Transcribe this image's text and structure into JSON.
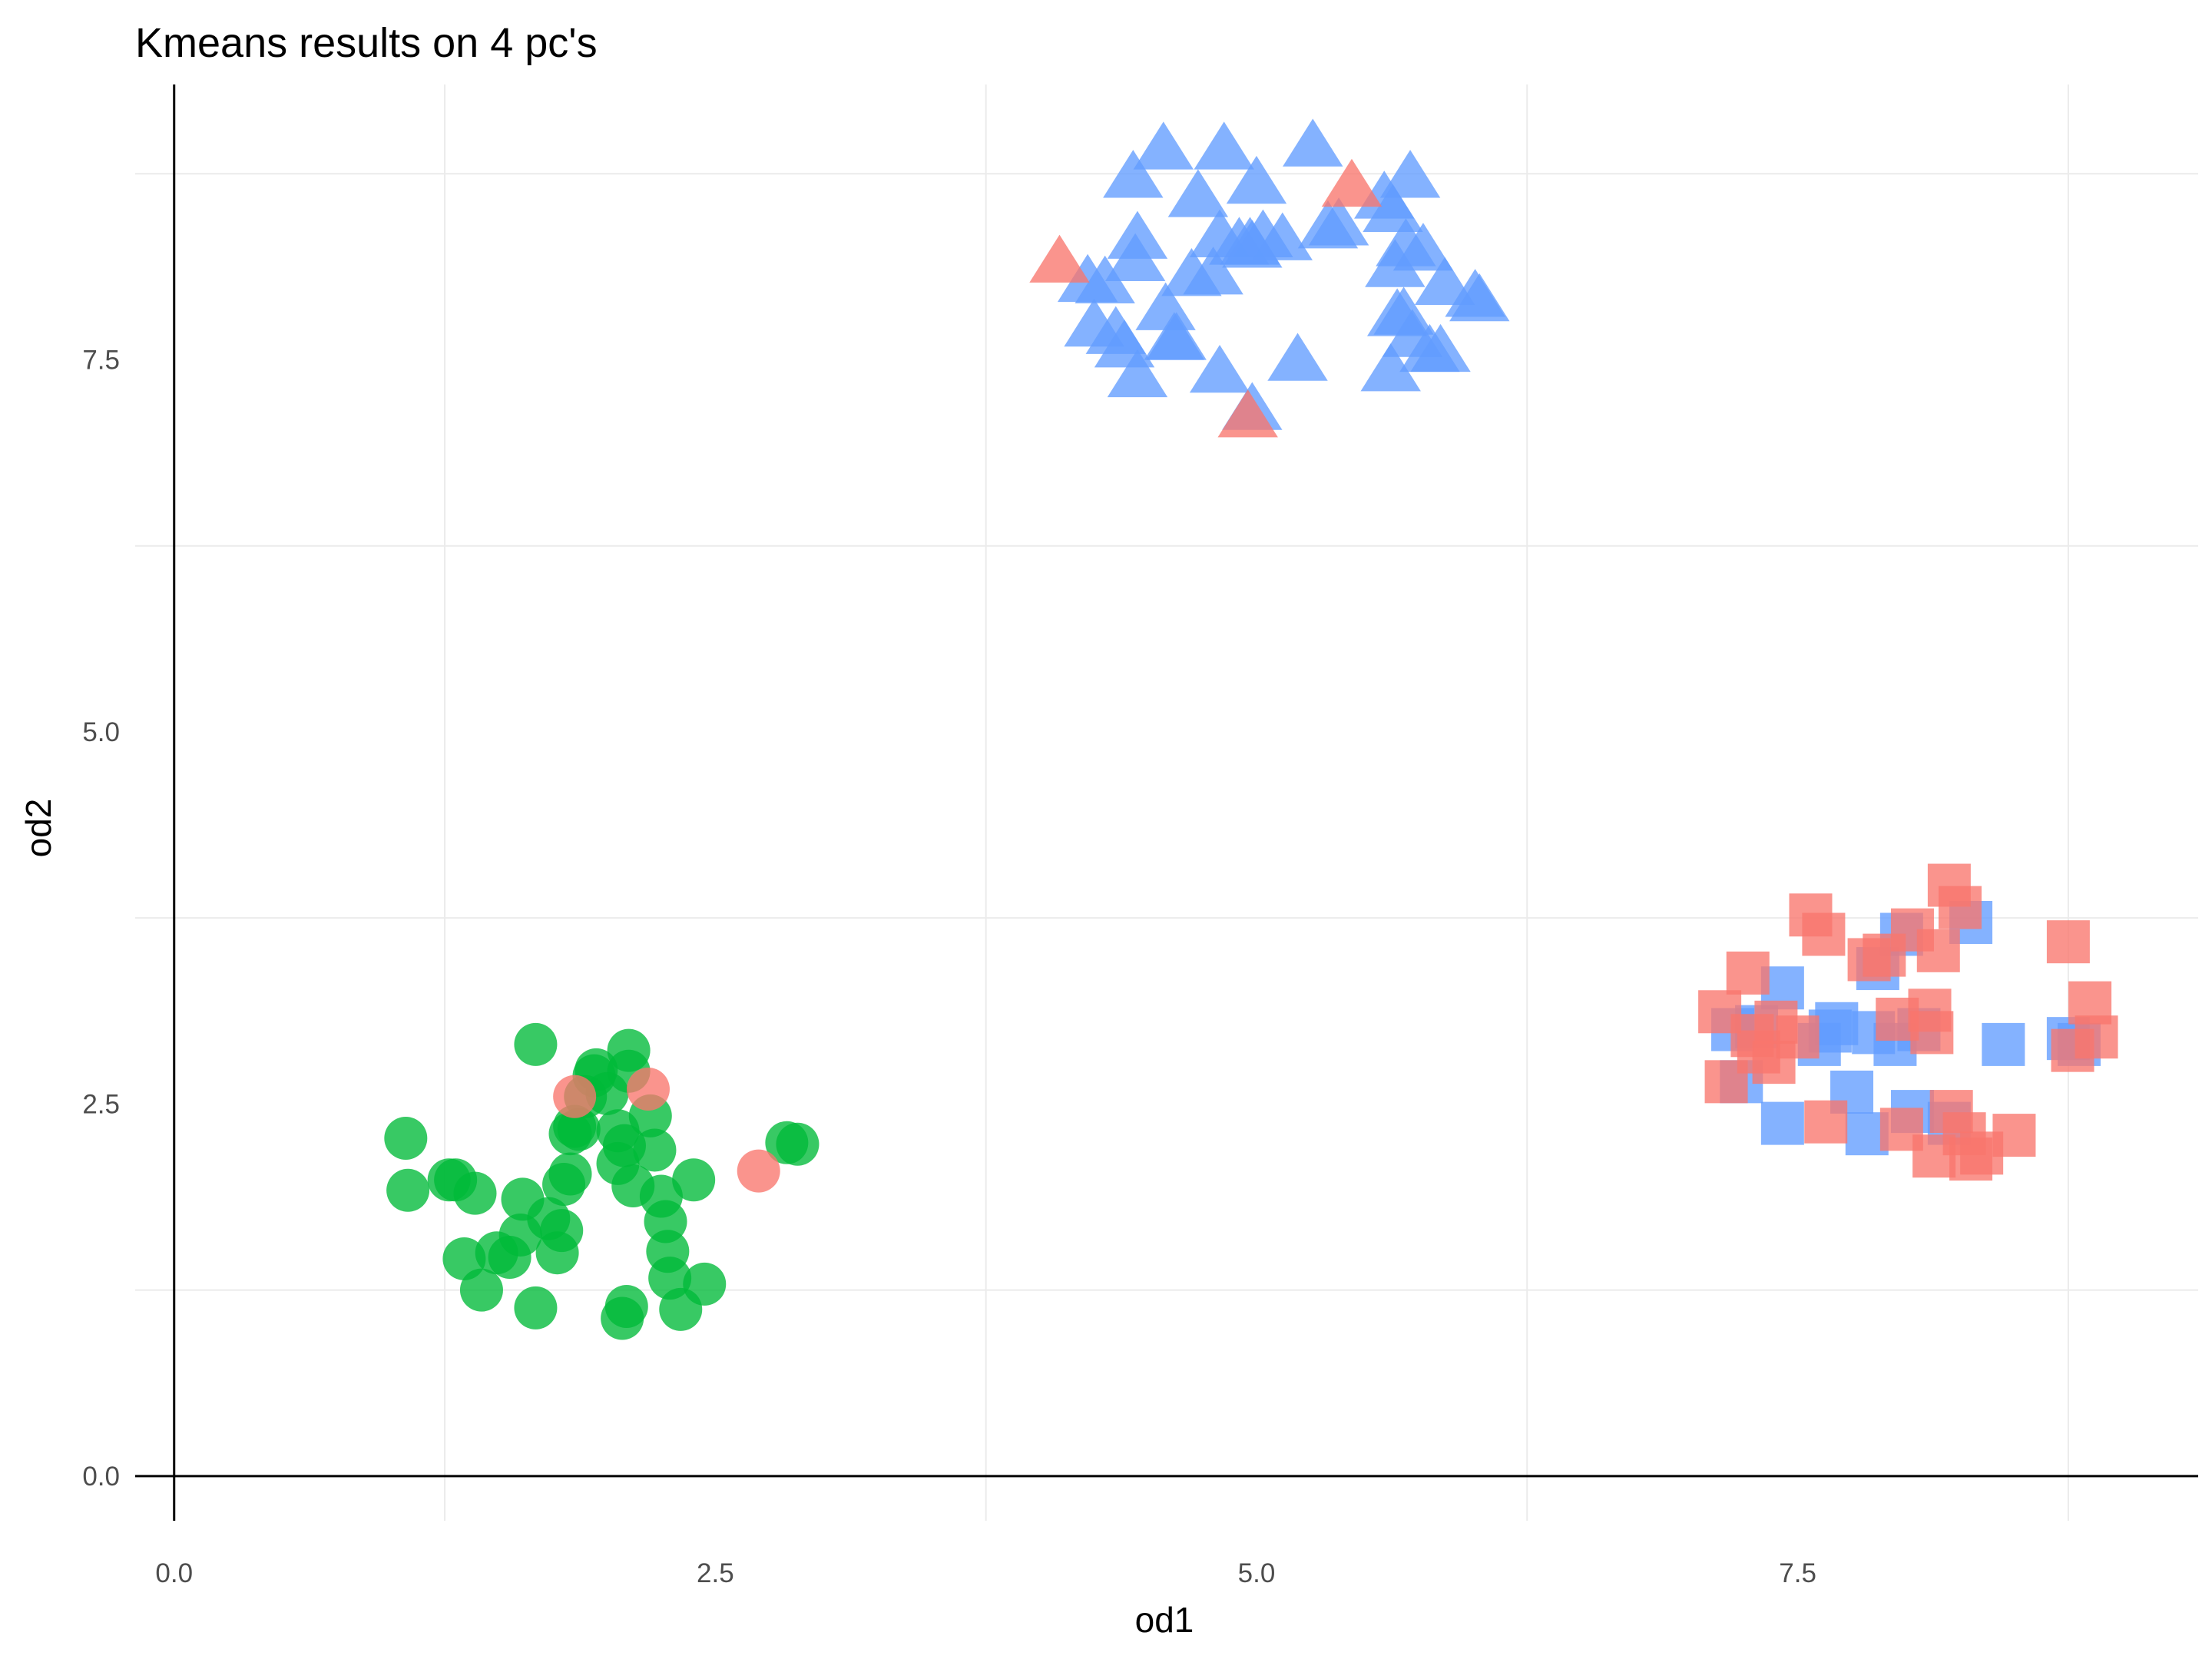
{
  "chart_data": {
    "type": "scatter",
    "title": "Kmeans results on 4 pc's",
    "xlabel": "od1",
    "ylabel": "od2",
    "xlim": [
      -0.18,
      9.35
    ],
    "ylim": [
      -0.3,
      9.35
    ],
    "x_ticks": [
      0.0,
      2.5,
      5.0,
      7.5
    ],
    "x_tick_labels": [
      "0.0",
      "2.5",
      "5.0",
      "7.5"
    ],
    "y_ticks": [
      0.0,
      2.5,
      5.0,
      7.5
    ],
    "y_tick_labels": [
      "0.0",
      "2.5",
      "5.0",
      "7.5"
    ],
    "grid": true,
    "legend": "none",
    "colors": {
      "red": "#F8766D",
      "green": "#00BA38",
      "blue": "#619CFF"
    },
    "series": [
      {
        "shape": "circle",
        "color": "green",
        "points": [
          [
            1.07,
            2.27
          ],
          [
            1.08,
            1.92
          ],
          [
            1.27,
            1.99
          ],
          [
            1.3,
            1.99
          ],
          [
            1.39,
            1.9
          ],
          [
            1.34,
            1.46
          ],
          [
            1.42,
            1.25
          ],
          [
            1.49,
            1.5
          ],
          [
            1.55,
            1.47
          ],
          [
            1.6,
            1.62
          ],
          [
            1.61,
            1.86
          ],
          [
            1.67,
            2.9
          ],
          [
            1.67,
            1.13
          ],
          [
            1.73,
            1.73
          ],
          [
            1.77,
            1.5
          ],
          [
            1.79,
            1.65
          ],
          [
            1.8,
            1.96
          ],
          [
            1.83,
            2.03
          ],
          [
            1.83,
            2.3
          ],
          [
            1.85,
            2.35
          ],
          [
            1.87,
            2.33
          ],
          [
            1.9,
            2.55
          ],
          [
            1.94,
            2.69
          ],
          [
            1.95,
            2.73
          ],
          [
            2.0,
            2.57
          ],
          [
            2.05,
            2.32
          ],
          [
            2.05,
            2.1
          ],
          [
            2.07,
            1.06
          ],
          [
            2.09,
            1.14
          ],
          [
            2.08,
            2.22
          ],
          [
            2.1,
            2.72
          ],
          [
            2.1,
            2.86
          ],
          [
            2.12,
            1.95
          ],
          [
            2.2,
            2.42
          ],
          [
            2.22,
            2.19
          ],
          [
            2.25,
            1.88
          ],
          [
            2.27,
            1.71
          ],
          [
            2.28,
            1.51
          ],
          [
            2.29,
            1.33
          ],
          [
            2.34,
            1.12
          ],
          [
            2.4,
            1.99
          ],
          [
            2.45,
            1.29
          ],
          [
            2.83,
            2.24
          ],
          [
            2.88,
            2.23
          ]
        ]
      },
      {
        "shape": "circle",
        "color": "red",
        "points": [
          [
            1.85,
            2.55
          ],
          [
            2.19,
            2.6
          ],
          [
            2.7,
            2.05
          ]
        ]
      },
      {
        "shape": "triangle",
        "color": "blue",
        "points": [
          [
            4.22,
            8.03
          ],
          [
            4.3,
            8.02
          ],
          [
            4.25,
            7.73
          ],
          [
            4.35,
            7.68
          ],
          [
            4.39,
            7.59
          ],
          [
            4.44,
            8.17
          ],
          [
            4.45,
            8.32
          ],
          [
            4.45,
            7.39
          ],
          [
            4.43,
            8.73
          ],
          [
            4.57,
            8.92
          ],
          [
            4.58,
            7.84
          ],
          [
            4.62,
            7.64
          ],
          [
            4.63,
            7.64
          ],
          [
            4.7,
            8.07
          ],
          [
            4.73,
            8.6
          ],
          [
            4.8,
            8.08
          ],
          [
            4.83,
            8.33
          ],
          [
            4.83,
            7.42
          ],
          [
            4.85,
            8.92
          ],
          [
            4.92,
            8.28
          ],
          [
            4.97,
            8.28
          ],
          [
            4.98,
            8.26
          ],
          [
            4.98,
            7.17
          ],
          [
            5.0,
            8.69
          ],
          [
            5.03,
            8.33
          ],
          [
            5.12,
            8.31
          ],
          [
            5.19,
            7.5
          ],
          [
            5.26,
            8.94
          ],
          [
            5.33,
            8.39
          ],
          [
            5.38,
            8.41
          ],
          [
            5.59,
            8.59
          ],
          [
            5.63,
            8.5
          ],
          [
            5.62,
            7.43
          ],
          [
            5.64,
            8.13
          ],
          [
            5.65,
            7.8
          ],
          [
            5.68,
            7.81
          ],
          [
            5.69,
            8.27
          ],
          [
            5.71,
            8.73
          ],
          [
            5.72,
            7.66
          ],
          [
            5.77,
            8.24
          ],
          [
            5.8,
            7.56
          ],
          [
            5.85,
            7.56
          ],
          [
            5.87,
            8.01
          ],
          [
            6.01,
            7.93
          ],
          [
            6.03,
            7.9
          ]
        ]
      },
      {
        "shape": "triangle",
        "color": "red",
        "points": [
          [
            4.09,
            8.16
          ],
          [
            5.44,
            8.67
          ],
          [
            4.96,
            7.12
          ]
        ]
      },
      {
        "shape": "square",
        "color": "blue",
        "points": [
          [
            7.2,
            3.0
          ],
          [
            7.24,
            2.65
          ],
          [
            7.31,
            3.02
          ],
          [
            7.43,
            3.28
          ],
          [
            7.43,
            2.37
          ],
          [
            7.6,
            2.9
          ],
          [
            7.65,
            2.99
          ],
          [
            7.68,
            3.04
          ],
          [
            7.75,
            2.58
          ],
          [
            7.82,
            2.3
          ],
          [
            7.85,
            2.98
          ],
          [
            7.87,
            3.41
          ],
          [
            7.95,
            2.9
          ],
          [
            7.98,
            3.64
          ],
          [
            8.03,
            2.45
          ],
          [
            8.06,
            3.0
          ],
          [
            8.2,
            2.37
          ],
          [
            8.3,
            3.72
          ],
          [
            8.45,
            2.9
          ],
          [
            8.75,
            2.94
          ],
          [
            8.8,
            2.9
          ]
        ]
      },
      {
        "shape": "square",
        "color": "red",
        "points": [
          [
            7.14,
            3.12
          ],
          [
            7.17,
            2.65
          ],
          [
            7.27,
            3.38
          ],
          [
            7.29,
            2.96
          ],
          [
            7.32,
            2.85
          ],
          [
            7.39,
            2.78
          ],
          [
            7.4,
            3.05
          ],
          [
            7.5,
            2.95
          ],
          [
            7.56,
            3.77
          ],
          [
            7.62,
            3.64
          ],
          [
            7.63,
            2.38
          ],
          [
            7.83,
            3.47
          ],
          [
            7.9,
            3.5
          ],
          [
            7.96,
            3.07
          ],
          [
            7.98,
            2.33
          ],
          [
            8.03,
            3.67
          ],
          [
            8.11,
            3.13
          ],
          [
            8.12,
            2.98
          ],
          [
            8.13,
            2.15
          ],
          [
            8.15,
            3.53
          ],
          [
            8.2,
            3.97
          ],
          [
            8.21,
            2.45
          ],
          [
            8.25,
            3.82
          ],
          [
            8.27,
            2.3
          ],
          [
            8.3,
            2.13
          ],
          [
            8.35,
            2.17
          ],
          [
            8.5,
            2.29
          ],
          [
            8.75,
            3.59
          ],
          [
            8.77,
            2.86
          ],
          [
            8.85,
            3.18
          ],
          [
            8.88,
            2.95
          ]
        ]
      }
    ]
  }
}
